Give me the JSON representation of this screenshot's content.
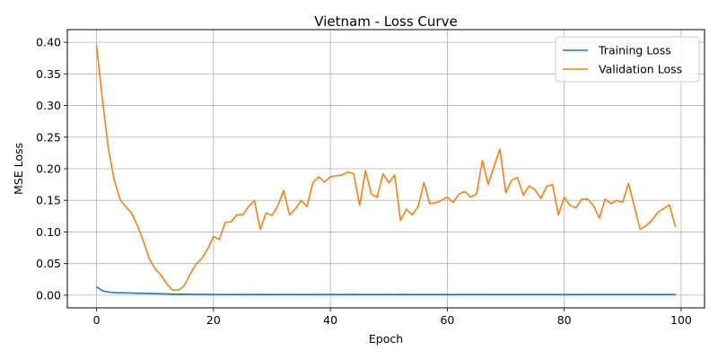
{
  "chart_data": {
    "type": "line",
    "title": "Vietnam - Loss Curve",
    "xlabel": "Epoch",
    "ylabel": "MSE Loss",
    "xlim": [
      -5,
      104
    ],
    "ylim": [
      -0.02,
      0.42
    ],
    "xticks": [
      0,
      20,
      40,
      60,
      80,
      100
    ],
    "yticks": [
      0.0,
      0.05,
      0.1,
      0.15,
      0.2,
      0.25,
      0.3,
      0.35,
      0.4
    ],
    "ytick_labels": [
      "0.00",
      "0.05",
      "0.10",
      "0.15",
      "0.20",
      "0.25",
      "0.30",
      "0.35",
      "0.40"
    ],
    "xtick_labels": [
      "0",
      "20",
      "40",
      "60",
      "80",
      "100"
    ],
    "grid": true,
    "legend_position": "top-right",
    "series": [
      {
        "name": "Training Loss",
        "color": "#1f77b4",
        "x_start": 0,
        "values": [
          0.013,
          0.007,
          0.005,
          0.004,
          0.0038,
          0.0036,
          0.0034,
          0.0032,
          0.003,
          0.0028,
          0.0025,
          0.0022,
          0.002,
          0.0018,
          0.0016,
          0.0015,
          0.0014,
          0.0013,
          0.0012,
          0.0012,
          0.0011,
          0.0011,
          0.0011,
          0.001,
          0.001,
          0.001,
          0.001,
          0.001,
          0.0012,
          0.001,
          0.001,
          0.001,
          0.001,
          0.001,
          0.001,
          0.001,
          0.001,
          0.001,
          0.001,
          0.001,
          0.001,
          0.001,
          0.001,
          0.001,
          0.0012,
          0.001,
          0.001,
          0.001,
          0.001,
          0.001,
          0.001,
          0.001,
          0.0012,
          0.001,
          0.001,
          0.001,
          0.001,
          0.001,
          0.001,
          0.001,
          0.001,
          0.001,
          0.001,
          0.001,
          0.001,
          0.001,
          0.001,
          0.001,
          0.001,
          0.001,
          0.0012,
          0.001,
          0.001,
          0.001,
          0.001,
          0.001,
          0.001,
          0.001,
          0.001,
          0.001,
          0.001,
          0.001,
          0.001,
          0.001,
          0.001,
          0.001,
          0.001,
          0.001,
          0.001,
          0.001,
          0.001,
          0.001,
          0.001,
          0.001,
          0.001,
          0.001,
          0.001,
          0.001,
          0.001,
          0.001
        ]
      },
      {
        "name": "Validation Loss",
        "color": "#ff7f0e",
        "x_start": 0,
        "values": [
          0.395,
          0.31,
          0.233,
          0.183,
          0.152,
          0.14,
          0.13,
          0.11,
          0.086,
          0.058,
          0.042,
          0.032,
          0.018,
          0.008,
          0.008,
          0.015,
          0.033,
          0.049,
          0.058,
          0.073,
          0.093,
          0.088,
          0.115,
          0.116,
          0.127,
          0.127,
          0.14,
          0.15,
          0.104,
          0.13,
          0.126,
          0.141,
          0.166,
          0.127,
          0.136,
          0.15,
          0.14,
          0.178,
          0.187,
          0.179,
          0.187,
          0.189,
          0.19,
          0.195,
          0.192,
          0.142,
          0.197,
          0.16,
          0.155,
          0.192,
          0.178,
          0.19,
          0.118,
          0.136,
          0.127,
          0.14,
          0.178,
          0.145,
          0.146,
          0.15,
          0.155,
          0.147,
          0.16,
          0.164,
          0.155,
          0.16,
          0.213,
          0.175,
          0.204,
          0.231,
          0.162,
          0.182,
          0.186,
          0.158,
          0.173,
          0.167,
          0.153,
          0.172,
          0.175,
          0.127,
          0.155,
          0.142,
          0.138,
          0.152,
          0.152,
          0.142,
          0.122,
          0.152,
          0.145,
          0.15,
          0.147,
          0.177,
          0.14,
          0.104,
          0.11,
          0.118,
          0.131,
          0.137,
          0.143,
          0.109
        ]
      }
    ]
  }
}
